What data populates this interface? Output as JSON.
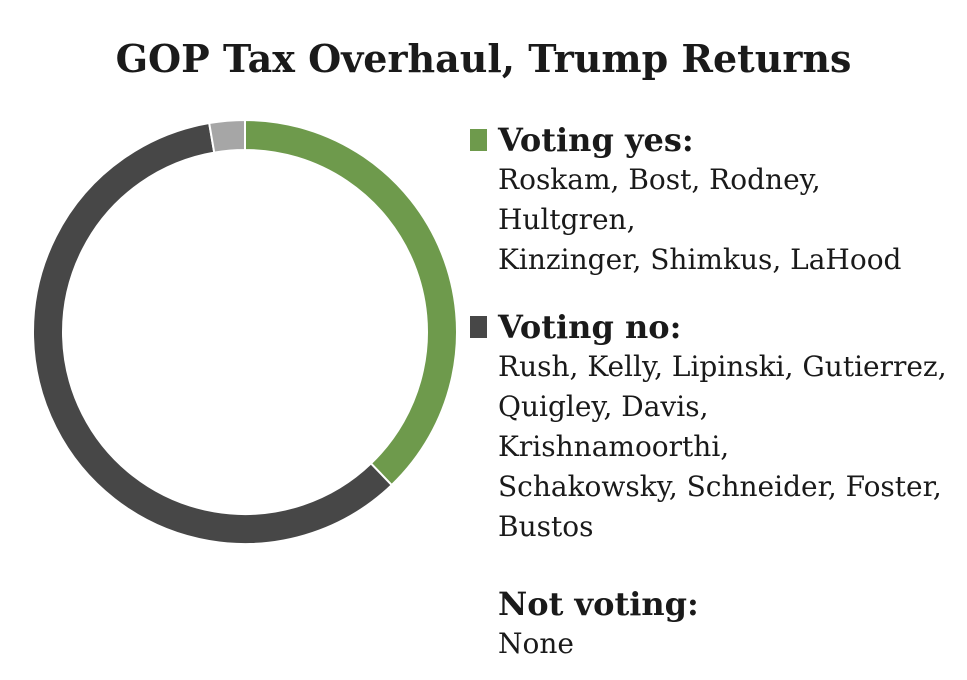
{
  "chart_data": {
    "type": "pie",
    "title": "GOP Tax Overhaul, Trump Returns",
    "style": "donut",
    "categories": [
      "Voting yes",
      "Voting no",
      "Not voting"
    ],
    "values": [
      7,
      11,
      0.5
    ],
    "colors": [
      "#6e9a4c",
      "#474747",
      "#a6a6a6"
    ],
    "legend": [
      {
        "label": "Voting yes:",
        "names": [
          "Roskam, Bost, Rodney, Hultgren,",
          "Kinzinger, Shimkus, LaHood"
        ],
        "color": "#6e9a4c"
      },
      {
        "label": "Voting no:",
        "names": [
          "Rush, Kelly, Lipinski, Gutierrez,",
          "Quigley, Davis, Krishnamoorthi,",
          "Schakowsky, Schneider, Foster,",
          "Bustos"
        ],
        "color": "#474747"
      },
      {
        "label": "Not voting:",
        "names": [
          "None"
        ],
        "color": ""
      }
    ]
  }
}
